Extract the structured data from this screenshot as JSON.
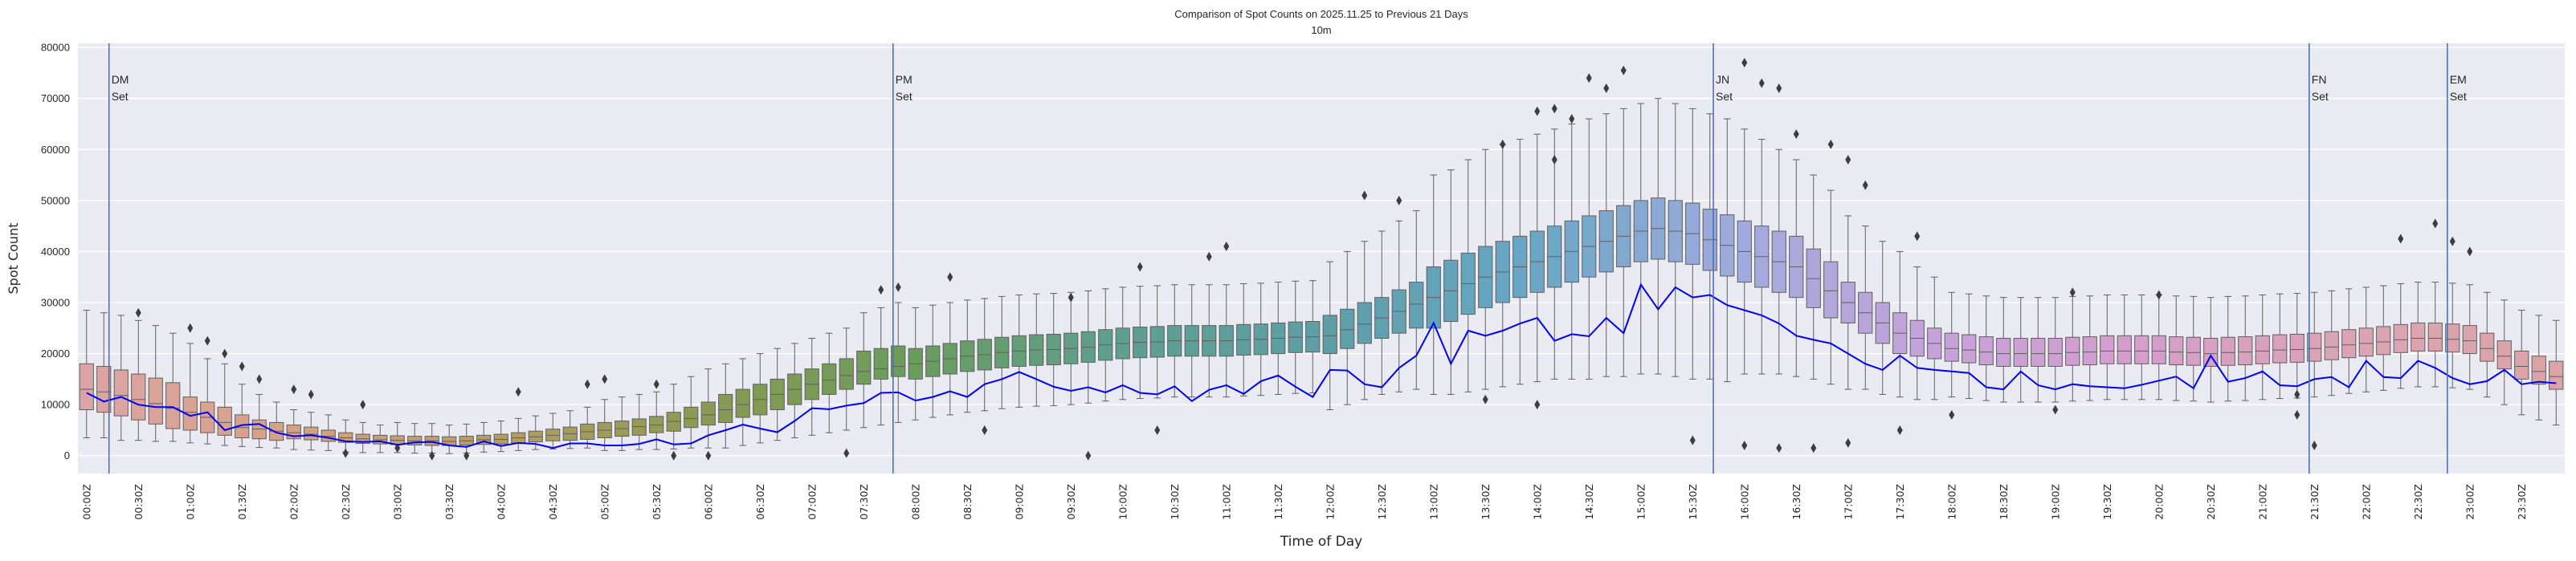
{
  "chart_data": {
    "type": "box",
    "title": "Comparison of Spot Counts on 2025.11.25 to Previous 21 Days",
    "subtitle": "10m",
    "xlabel": "Time of Day",
    "ylabel": "Spot Count",
    "ylim": [
      -3500,
      80800
    ],
    "yticks": [
      0,
      10000,
      20000,
      30000,
      40000,
      50000,
      60000,
      70000,
      80000
    ],
    "grid": true,
    "bin_minutes": 10,
    "tick_labels": [
      "00:00Z",
      "00:30Z",
      "01:00Z",
      "01:30Z",
      "02:00Z",
      "02:30Z",
      "03:00Z",
      "03:30Z",
      "04:00Z",
      "04:30Z",
      "05:00Z",
      "05:30Z",
      "06:00Z",
      "06:30Z",
      "07:00Z",
      "07:30Z",
      "08:00Z",
      "08:30Z",
      "09:00Z",
      "09:30Z",
      "10:00Z",
      "10:30Z",
      "11:00Z",
      "11:30Z",
      "12:00Z",
      "12:30Z",
      "13:00Z",
      "13:30Z",
      "14:00Z",
      "14:30Z",
      "15:00Z",
      "15:30Z",
      "16:00Z",
      "16:30Z",
      "17:00Z",
      "17:30Z",
      "18:00Z",
      "18:30Z",
      "19:00Z",
      "19:30Z",
      "20:00Z",
      "20:30Z",
      "21:00Z",
      "21:30Z",
      "22:00Z",
      "22:30Z",
      "23:00Z",
      "23:30Z"
    ],
    "colors": {
      "background": "#eaeaf2",
      "grid": "#ffffff",
      "box_edge": "#5f5f5f",
      "outlier": "#3d3d3d",
      "today_line": "#0000ff",
      "event_line": "#4c72b0",
      "box_palette": [
        "#dba4a6",
        "#d6a283",
        "#b59d62",
        "#8a9a52",
        "#6a9c5c",
        "#5e9f8e",
        "#5e9fa6",
        "#68a6c6",
        "#9fabdc",
        "#c6a2da",
        "#d59ecb",
        "#dba4b4",
        "#dba4a6"
      ]
    },
    "boxes": {
      "median": [
        13000,
        12500,
        11800,
        11000,
        10200,
        9300,
        8500,
        7500,
        6500,
        5500,
        5200,
        4800,
        4500,
        4200,
        3800,
        3500,
        3300,
        3100,
        3000,
        2900,
        2900,
        2800,
        2900,
        3100,
        3200,
        3500,
        3700,
        4000,
        4300,
        4700,
        5000,
        5300,
        5700,
        6000,
        6700,
        7300,
        8000,
        9000,
        10000,
        11000,
        12000,
        13000,
        14000,
        14800,
        15700,
        16500,
        17000,
        17500,
        18000,
        18500,
        19000,
        19500,
        19800,
        20200,
        20500,
        20700,
        20800,
        21000,
        21300,
        21700,
        22000,
        22200,
        22300,
        22500,
        22500,
        22500,
        22500,
        22700,
        22800,
        23000,
        23200,
        23300,
        23500,
        24700,
        25800,
        27000,
        28300,
        29700,
        31000,
        32300,
        33700,
        35000,
        36000,
        37000,
        38000,
        39000,
        40000,
        41000,
        42000,
        43000,
        44000,
        44500,
        44000,
        43500,
        42300,
        41200,
        40000,
        39000,
        38000,
        37000,
        34700,
        32300,
        30000,
        28000,
        26000,
        24000,
        23000,
        22000,
        21000,
        20700,
        20300,
        20000,
        20000,
        20000,
        20000,
        20200,
        20300,
        20500,
        20500,
        20500,
        20500,
        20300,
        20200,
        20000,
        20200,
        20300,
        20500,
        20700,
        20800,
        21000,
        21300,
        21700,
        22000,
        22300,
        22700,
        23000,
        23000,
        22800,
        22500,
        21000,
        19500,
        17500,
        16500,
        15500
      ],
      "q1": [
        9000,
        8500,
        7800,
        7000,
        6200,
        5300,
        5000,
        4500,
        4000,
        3500,
        3300,
        3000,
        3300,
        3100,
        2800,
        2600,
        2400,
        2300,
        2200,
        2100,
        2000,
        2000,
        2100,
        2200,
        2300,
        2500,
        2700,
        2900,
        3000,
        3200,
        3500,
        3800,
        4000,
        4500,
        4800,
        5500,
        6000,
        6500,
        7500,
        8000,
        9000,
        10000,
        11000,
        12000,
        13000,
        14000,
        15000,
        15500,
        15000,
        15500,
        16000,
        16500,
        16800,
        17200,
        17500,
        17700,
        17800,
        18000,
        18300,
        18700,
        19000,
        19200,
        19300,
        19500,
        19500,
        19500,
        19500,
        19700,
        19800,
        20000,
        20200,
        20300,
        20000,
        21000,
        22000,
        23000,
        24000,
        25000,
        25000,
        26300,
        27700,
        29000,
        30000,
        31000,
        32000,
        33000,
        34000,
        35000,
        36000,
        37000,
        38000,
        38500,
        38000,
        37500,
        36300,
        35200,
        34000,
        33000,
        32000,
        31000,
        29000,
        27000,
        26000,
        24000,
        22000,
        20000,
        19500,
        19000,
        18500,
        18200,
        17800,
        17500,
        17500,
        17500,
        17500,
        17700,
        17800,
        18000,
        18000,
        18000,
        18000,
        17800,
        17700,
        17500,
        17700,
        17800,
        18000,
        18200,
        18300,
        18500,
        18800,
        19200,
        19500,
        19800,
        20200,
        20500,
        20500,
        20300,
        20000,
        18500,
        17000,
        15000,
        14000,
        13000
      ],
      "q3": [
        18000,
        17500,
        16800,
        16000,
        15200,
        14300,
        11500,
        10500,
        9500,
        8000,
        7000,
        6500,
        6000,
        5600,
        5000,
        4500,
        4200,
        4000,
        3900,
        3800,
        3800,
        3700,
        3800,
        4000,
        4200,
        4500,
        4800,
        5200,
        5600,
        6200,
        6500,
        6800,
        7200,
        7700,
        8500,
        9500,
        10500,
        12000,
        13000,
        14000,
        15000,
        16000,
        17000,
        18000,
        19000,
        20500,
        21000,
        21500,
        21000,
        21500,
        22000,
        22500,
        22800,
        23200,
        23500,
        23700,
        23800,
        24000,
        24300,
        24700,
        25000,
        25200,
        25300,
        25500,
        25500,
        25500,
        25500,
        25700,
        25800,
        26000,
        26200,
        26300,
        27500,
        28700,
        30000,
        31000,
        32500,
        34000,
        37000,
        38300,
        39700,
        41000,
        42000,
        43000,
        44000,
        45000,
        46000,
        47000,
        48000,
        49000,
        50000,
        50500,
        50000,
        49500,
        48300,
        47200,
        46000,
        45000,
        44000,
        43000,
        40500,
        38000,
        34000,
        32000,
        30000,
        28000,
        26500,
        25000,
        24000,
        23700,
        23300,
        23000,
        23000,
        23000,
        23000,
        23200,
        23300,
        23500,
        23500,
        23500,
        23500,
        23300,
        23200,
        23000,
        23200,
        23300,
        23500,
        23700,
        23800,
        24000,
        24300,
        24700,
        25000,
        25300,
        25700,
        26000,
        26000,
        25800,
        25500,
        24000,
        22500,
        20500,
        19500,
        18500
      ],
      "whisker_low": [
        3500,
        3500,
        3000,
        3000,
        2800,
        2800,
        2500,
        2300,
        2000,
        1800,
        1600,
        1500,
        1200,
        1100,
        1000,
        700,
        600,
        600,
        600,
        500,
        500,
        400,
        500,
        700,
        800,
        1000,
        1200,
        1300,
        1400,
        1500,
        1000,
        1000,
        1200,
        1200,
        1300,
        1500,
        1500,
        1500,
        2000,
        2500,
        3000,
        3500,
        4000,
        4500,
        5000,
        5500,
        6000,
        6500,
        7000,
        7500,
        8000,
        8500,
        8800,
        9200,
        9500,
        9700,
        9800,
        10000,
        10300,
        10700,
        11000,
        11200,
        11300,
        11500,
        11500,
        11500,
        11500,
        11700,
        11800,
        12000,
        12200,
        12300,
        9000,
        10000,
        11000,
        12000,
        12500,
        13000,
        12000,
        12000,
        12500,
        13000,
        13500,
        14000,
        14500,
        15000,
        15000,
        15000,
        15500,
        15500,
        16000,
        16000,
        15500,
        15000,
        15000,
        14500,
        16000,
        16000,
        16000,
        15500,
        15000,
        14000,
        13000,
        13000,
        12000,
        11500,
        11000,
        11000,
        11500,
        11200,
        10800,
        10500,
        10500,
        10500,
        10500,
        10700,
        10800,
        11000,
        11000,
        11000,
        11000,
        10800,
        10700,
        10500,
        10700,
        10800,
        11000,
        11200,
        11300,
        11500,
        11800,
        12200,
        12500,
        12800,
        13200,
        13500,
        13500,
        13300,
        13000,
        11500,
        10000,
        8000,
        7000,
        6000
      ],
      "whisker_high": [
        28500,
        28000,
        27500,
        26500,
        25500,
        24000,
        22000,
        19000,
        18000,
        14000,
        12000,
        10500,
        9000,
        8500,
        8000,
        7000,
        6500,
        6000,
        6500,
        6300,
        6300,
        6000,
        6200,
        6500,
        6800,
        7300,
        7800,
        8300,
        8800,
        9500,
        11000,
        11500,
        12000,
        12500,
        14000,
        15500,
        17000,
        18000,
        19000,
        20000,
        21000,
        22000,
        23000,
        24000,
        25000,
        28000,
        29000,
        30000,
        29000,
        29500,
        30000,
        30500,
        30800,
        31200,
        31500,
        31700,
        31800,
        32000,
        32300,
        32700,
        33000,
        33200,
        33300,
        33500,
        33500,
        33500,
        33500,
        33700,
        33800,
        34000,
        34200,
        34300,
        38000,
        40000,
        42000,
        44000,
        46000,
        48000,
        55000,
        56000,
        58000,
        60000,
        61000,
        62000,
        63000,
        64000,
        65000,
        66000,
        67000,
        68000,
        69000,
        70000,
        69000,
        68000,
        67000,
        66000,
        64000,
        62000,
        60000,
        58000,
        55000,
        52000,
        47000,
        45000,
        42000,
        40000,
        37000,
        35000,
        32000,
        31700,
        31300,
        31000,
        31000,
        31000,
        31000,
        31200,
        31300,
        31500,
        31500,
        31500,
        31500,
        31300,
        31200,
        31000,
        31200,
        31300,
        31500,
        31700,
        31800,
        32000,
        32300,
        32700,
        33000,
        33300,
        33700,
        34000,
        34000,
        33800,
        33500,
        32000,
        30500,
        28500,
        27500,
        26500
      ]
    },
    "today_series": {
      "values": [
        12300,
        10600,
        11500,
        10000,
        9500,
        9500,
        7800,
        8500,
        5000,
        6000,
        6200,
        4500,
        3800,
        4000,
        3500,
        2800,
        2700,
        2800,
        2100,
        2600,
        2700,
        2000,
        1700,
        2800,
        1900,
        2500,
        2300,
        1500,
        2400,
        2400,
        2000,
        2000,
        2300,
        3200,
        2200,
        2400,
        4000,
        5000,
        6100,
        5300,
        4600,
        6800,
        9300,
        9100,
        9800,
        10300,
        12300,
        12400,
        10800,
        11500,
        12600,
        11500,
        14000,
        15000,
        16400,
        15000,
        13500,
        12700,
        13400,
        12400,
        13800,
        12300,
        12000,
        13600,
        10700,
        12900,
        13800,
        12100,
        14600,
        15700,
        13500,
        11500,
        16800,
        16700,
        14000,
        13400,
        17200,
        19600,
        26000,
        18000,
        24500,
        23500,
        24500,
        25900,
        27000,
        22500,
        23800,
        23400,
        27000,
        24000,
        33500,
        28700,
        33000,
        31000,
        31500,
        29500,
        28500,
        27500,
        25900,
        23500,
        22700,
        22000,
        20000,
        18000,
        16800,
        19600,
        17200,
        16800,
        16500,
        16200,
        13400,
        13000,
        16500,
        13800,
        13000,
        14000,
        13600,
        13400,
        13200,
        13900,
        14700,
        15500,
        13200,
        19600,
        14500,
        15200,
        16500,
        13800,
        13600,
        15000,
        15400,
        13400,
        18600,
        15400,
        15200,
        18600,
        17200,
        15200,
        14000,
        14600,
        16800,
        14000,
        14500,
        14200
      ]
    },
    "outliers": [
      {
        "time": "00:30",
        "value": 28000
      },
      {
        "time": "01:00",
        "value": 25000
      },
      {
        "time": "01:10",
        "value": 22500
      },
      {
        "time": "01:20",
        "value": 20000
      },
      {
        "time": "01:30",
        "value": 17500
      },
      {
        "time": "01:40",
        "value": 15000
      },
      {
        "time": "02:00",
        "value": 13000
      },
      {
        "time": "02:10",
        "value": 12000
      },
      {
        "time": "02:30",
        "value": 500
      },
      {
        "time": "02:40",
        "value": 10000
      },
      {
        "time": "03:00",
        "value": 1500
      },
      {
        "time": "03:20",
        "value": 0
      },
      {
        "time": "03:40",
        "value": 0
      },
      {
        "time": "04:10",
        "value": 12500
      },
      {
        "time": "04:50",
        "value": 14000
      },
      {
        "time": "05:00",
        "value": 15000
      },
      {
        "time": "05:30",
        "value": 14000
      },
      {
        "time": "05:40",
        "value": 0
      },
      {
        "time": "06:00",
        "value": 0
      },
      {
        "time": "07:20",
        "value": 500
      },
      {
        "time": "07:40",
        "value": 32500
      },
      {
        "time": "07:50",
        "value": 33000
      },
      {
        "time": "08:20",
        "value": 35000
      },
      {
        "time": "08:40",
        "value": 5000
      },
      {
        "time": "09:30",
        "value": 31000
      },
      {
        "time": "09:40",
        "value": 0
      },
      {
        "time": "10:10",
        "value": 37000
      },
      {
        "time": "10:20",
        "value": 5000
      },
      {
        "time": "10:50",
        "value": 39000
      },
      {
        "time": "11:00",
        "value": 41000
      },
      {
        "time": "12:20",
        "value": 51000
      },
      {
        "time": "12:40",
        "value": 50000
      },
      {
        "time": "13:30",
        "value": 11000
      },
      {
        "time": "13:40",
        "value": 61000
      },
      {
        "time": "14:00",
        "value": 67500
      },
      {
        "time": "14:00",
        "value": 10000
      },
      {
        "time": "14:10",
        "value": 68000
      },
      {
        "time": "14:10",
        "value": 58000
      },
      {
        "time": "14:20",
        "value": 66000
      },
      {
        "time": "14:30",
        "value": 74000
      },
      {
        "time": "14:40",
        "value": 72000
      },
      {
        "time": "14:50",
        "value": 75500
      },
      {
        "time": "15:30",
        "value": 3000
      },
      {
        "time": "16:00",
        "value": 77000
      },
      {
        "time": "16:00",
        "value": 2000
      },
      {
        "time": "16:10",
        "value": 73000
      },
      {
        "time": "16:20",
        "value": 72000
      },
      {
        "time": "16:20",
        "value": 1500
      },
      {
        "time": "16:30",
        "value": 63000
      },
      {
        "time": "16:40",
        "value": 1500
      },
      {
        "time": "16:50",
        "value": 61000
      },
      {
        "time": "17:00",
        "value": 58000
      },
      {
        "time": "17:00",
        "value": 2500
      },
      {
        "time": "17:10",
        "value": 53000
      },
      {
        "time": "17:30",
        "value": 5000
      },
      {
        "time": "17:40",
        "value": 43000
      },
      {
        "time": "18:00",
        "value": 8000
      },
      {
        "time": "19:00",
        "value": 9000
      },
      {
        "time": "19:10",
        "value": 32000
      },
      {
        "time": "20:00",
        "value": 31500
      },
      {
        "time": "21:20",
        "value": 8000
      },
      {
        "time": "21:20",
        "value": 12000
      },
      {
        "time": "21:30",
        "value": 2000
      },
      {
        "time": "22:20",
        "value": 42500
      },
      {
        "time": "22:40",
        "value": 45500
      },
      {
        "time": "22:50",
        "value": 42000
      },
      {
        "time": "23:00",
        "value": 40000
      }
    ],
    "event_lines": [
      {
        "name": "DM",
        "label": "Set",
        "time": "00:13"
      },
      {
        "name": "PM",
        "label": "Set",
        "time": "07:47"
      },
      {
        "name": "JN",
        "label": "Set",
        "time": "15:42"
      },
      {
        "name": "FN",
        "label": "Set",
        "time": "21:27"
      },
      {
        "name": "EM",
        "label": "Set",
        "time": "22:47"
      }
    ]
  }
}
